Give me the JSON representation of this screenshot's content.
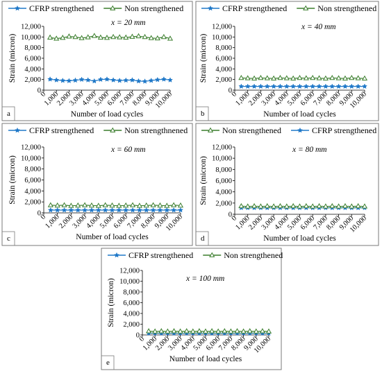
{
  "chart_data": [
    {
      "type": "line",
      "panel_label": "a",
      "annotation": "x = 20 mm",
      "xlabel": "Number of load cycles",
      "ylabel": "Strain (micron)",
      "ylim": [
        0,
        12000
      ],
      "y_ticks": [
        "0",
        "2,000",
        "4,000",
        "6,000",
        "8,000",
        "10,000",
        "12,000"
      ],
      "x_ticks": [
        "0",
        "1,000",
        "2,000",
        "3,000",
        "4,000",
        "5,000",
        "6,000",
        "7,000",
        "8,000",
        "9,000",
        "10,000"
      ],
      "xlim": [
        0,
        10000
      ],
      "legend_order": [
        0,
        1
      ],
      "series": [
        {
          "name": "CFRP strengthened",
          "color": "#1f78c8",
          "marker": "star",
          "x": [
            500,
            1000,
            1500,
            2000,
            2500,
            3000,
            3500,
            4000,
            4500,
            5000,
            5500,
            6000,
            6500,
            7000,
            7500,
            8000,
            8500,
            9000,
            9500,
            10000
          ],
          "values": [
            2050,
            1900,
            1800,
            1750,
            1850,
            2000,
            1900,
            1700,
            2000,
            2050,
            1900,
            1800,
            1850,
            1900,
            1700,
            1650,
            1800,
            1950,
            2050,
            1900
          ]
        },
        {
          "name": "Non strengthened",
          "color": "#3a7d2c",
          "marker": "triangle",
          "x": [
            500,
            1000,
            1500,
            2000,
            2500,
            3000,
            3500,
            4000,
            4500,
            5000,
            5500,
            6000,
            6500,
            7000,
            7500,
            8000,
            8500,
            9000,
            9500,
            10000
          ],
          "values": [
            9900,
            9700,
            9850,
            10100,
            10000,
            9800,
            9950,
            10200,
            9900,
            9850,
            10000,
            9950,
            9900,
            10050,
            10150,
            10000,
            9800,
            9750,
            10000,
            9700
          ]
        }
      ]
    },
    {
      "type": "line",
      "panel_label": "b",
      "annotation": "x = 40 mm",
      "xlabel": "Number of load cycles",
      "ylabel": "Strain (micron)",
      "ylim": [
        0,
        12000
      ],
      "y_ticks": [
        "0",
        "2,000",
        "4,000",
        "6,000",
        "8,000",
        "10,000",
        "12,000"
      ],
      "x_ticks": [
        "0",
        "1,000",
        "2,000",
        "3,000",
        "4,000",
        "5,000",
        "6,000",
        "7,000",
        "8,000",
        "9,000",
        "10,000"
      ],
      "xlim": [
        0,
        10000
      ],
      "legend_order": [
        0,
        1
      ],
      "series": [
        {
          "name": "CFRP strengthened",
          "color": "#1f78c8",
          "marker": "star",
          "x": [
            500,
            1000,
            1500,
            2000,
            2500,
            3000,
            3500,
            4000,
            4500,
            5000,
            5500,
            6000,
            6500,
            7000,
            7500,
            8000,
            8500,
            9000,
            9500,
            10000
          ],
          "values": [
            700,
            700,
            700,
            700,
            700,
            700,
            700,
            700,
            700,
            700,
            700,
            700,
            700,
            700,
            700,
            700,
            700,
            700,
            700,
            700
          ]
        },
        {
          "name": "Non strengthened",
          "color": "#3a7d2c",
          "marker": "triangle",
          "x": [
            500,
            1000,
            1500,
            2000,
            2500,
            3000,
            3500,
            4000,
            4500,
            5000,
            5500,
            6000,
            6500,
            7000,
            7500,
            8000,
            8500,
            9000,
            9500,
            10000
          ],
          "values": [
            2300,
            2250,
            2200,
            2300,
            2250,
            2200,
            2300,
            2250,
            2200,
            2300,
            2250,
            2300,
            2250,
            2200,
            2300,
            2250,
            2200,
            2300,
            2250,
            2200
          ]
        }
      ]
    },
    {
      "type": "line",
      "panel_label": "c",
      "annotation": "x = 60 mm",
      "xlabel": "Number of load cycles",
      "ylabel": "Strain (micron)",
      "ylim": [
        0,
        12000
      ],
      "y_ticks": [
        "0",
        "2,000",
        "4,000",
        "6,000",
        "8,000",
        "10,000",
        "12,000"
      ],
      "x_ticks": [
        "0",
        "1,000",
        "2,000",
        "3,000",
        "4,000",
        "5,000",
        "6,000",
        "7,000",
        "8,000",
        "9,000",
        "10,000"
      ],
      "xlim": [
        0,
        10000
      ],
      "legend_order": [
        0,
        1
      ],
      "series": [
        {
          "name": "CFRP strengthened",
          "color": "#1f78c8",
          "marker": "star",
          "x": [
            500,
            1000,
            1500,
            2000,
            2500,
            3000,
            3500,
            4000,
            4500,
            5000,
            5500,
            6000,
            6500,
            7000,
            7500,
            8000,
            8500,
            9000,
            9500,
            10000
          ],
          "values": [
            500,
            500,
            500,
            500,
            500,
            500,
            500,
            500,
            500,
            500,
            500,
            500,
            500,
            500,
            500,
            500,
            500,
            500,
            500,
            500
          ]
        },
        {
          "name": "Non strengthnened",
          "color": "#3a7d2c",
          "marker": "triangle",
          "x": [
            500,
            1000,
            1500,
            2000,
            2500,
            3000,
            3500,
            4000,
            4500,
            5000,
            5500,
            6000,
            6500,
            7000,
            7500,
            8000,
            8500,
            9000,
            9500,
            10000
          ],
          "values": [
            1400,
            1350,
            1400,
            1300,
            1350,
            1400,
            1350,
            1300,
            1400,
            1350,
            1300,
            1350,
            1400,
            1300,
            1350,
            1400,
            1350,
            1300,
            1400,
            1350
          ]
        }
      ]
    },
    {
      "type": "line",
      "panel_label": "d",
      "annotation": "x = 80 mm",
      "xlabel": "Number of load cycles",
      "ylabel": "Strain (micron)",
      "ylim": [
        0,
        12000
      ],
      "y_ticks": [
        "0",
        "2,000",
        "4,000",
        "6,000",
        "8,000",
        "10,000",
        "12,000"
      ],
      "x_ticks": [
        "0",
        "1,000",
        "2,000",
        "3,000",
        "4,000",
        "5,000",
        "6,000",
        "7,000",
        "8,000",
        "9,000",
        "10,000"
      ],
      "xlim": [
        0,
        10000
      ],
      "legend_order": [
        1,
        0
      ],
      "series": [
        {
          "name": "CFRP strengthened",
          "color": "#1f78c8",
          "marker": "star",
          "x": [
            500,
            1000,
            1500,
            2000,
            2500,
            3000,
            3500,
            4000,
            4500,
            5000,
            5500,
            6000,
            6500,
            7000,
            7500,
            8000,
            8500,
            9000,
            9500,
            10000
          ],
          "values": [
            1150,
            1150,
            1150,
            1150,
            1150,
            1150,
            1150,
            1150,
            1150,
            1150,
            1150,
            1150,
            1150,
            1150,
            1150,
            1150,
            1150,
            1150,
            1150,
            1150
          ]
        },
        {
          "name": "Non strengthened",
          "color": "#3a7d2c",
          "marker": "triangle",
          "x": [
            500,
            1000,
            1500,
            2000,
            2500,
            3000,
            3500,
            4000,
            4500,
            5000,
            5500,
            6000,
            6500,
            7000,
            7500,
            8000,
            8500,
            9000,
            9500,
            10000
          ],
          "values": [
            1450,
            1400,
            1450,
            1400,
            1450,
            1400,
            1450,
            1400,
            1450,
            1400,
            1450,
            1400,
            1450,
            1400,
            1450,
            1400,
            1450,
            1400,
            1450,
            1400
          ]
        }
      ]
    },
    {
      "type": "line",
      "panel_label": "e",
      "annotation": "x = 100 mm",
      "xlabel": "Number of load cycles",
      "ylabel": "Strain (micron)",
      "ylim": [
        0,
        12000
      ],
      "y_ticks": [
        "0",
        "2,000",
        "4,000",
        "6,000",
        "8,000",
        "10,000",
        "12,000"
      ],
      "x_ticks": [
        "0",
        "1,000",
        "2,000",
        "3,000",
        "4,000",
        "5,000",
        "6,000",
        "7,000",
        "8,000",
        "9,000",
        "10,000"
      ],
      "xlim": [
        0,
        10000
      ],
      "legend_order": [
        0,
        1
      ],
      "series": [
        {
          "name": "CFRP strengthened",
          "color": "#1f78c8",
          "marker": "star",
          "x": [
            500,
            1000,
            1500,
            2000,
            2500,
            3000,
            3500,
            4000,
            4500,
            5000,
            5500,
            6000,
            6500,
            7000,
            7500,
            8000,
            8500,
            9000,
            9500,
            10000
          ],
          "values": [
            300,
            300,
            300,
            300,
            300,
            300,
            300,
            300,
            300,
            300,
            300,
            300,
            300,
            300,
            300,
            300,
            300,
            300,
            300,
            300
          ]
        },
        {
          "name": "Non strengthened",
          "color": "#3a7d2c",
          "marker": "triangle",
          "x": [
            500,
            1000,
            1500,
            2000,
            2500,
            3000,
            3500,
            4000,
            4500,
            5000,
            5500,
            6000,
            6500,
            7000,
            7500,
            8000,
            8500,
            9000,
            9500,
            10000
          ],
          "values": [
            700,
            650,
            700,
            650,
            700,
            650,
            700,
            650,
            700,
            650,
            700,
            650,
            700,
            650,
            700,
            650,
            700,
            650,
            700,
            650
          ]
        }
      ]
    }
  ]
}
